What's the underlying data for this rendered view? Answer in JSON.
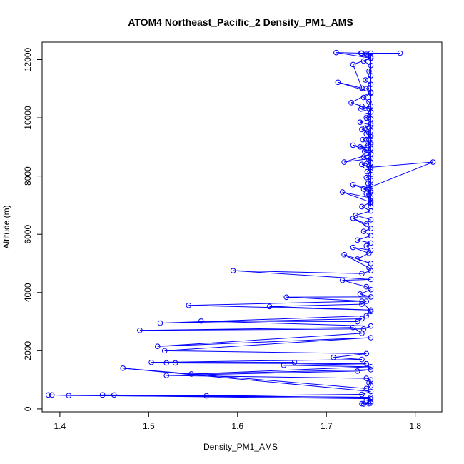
{
  "chart_data": {
    "type": "line",
    "title": "ATOM4 Northeast_Pacific_2 Density_PM1_AMS",
    "xlabel": "Density_PM1_AMS",
    "ylabel": "Altitude (m)",
    "xlim": [
      1.38,
      1.83
    ],
    "ylim": [
      -100,
      12600
    ],
    "xticks": [
      "1.4",
      "1.5",
      "1.6",
      "1.7",
      "1.8"
    ],
    "yticks": [
      "0",
      "2000",
      "4000",
      "6000",
      "8000",
      "10000",
      "12000"
    ],
    "series_color": "#0000ff",
    "series": [
      {
        "x": [
          1.75,
          1.745,
          1.74,
          1.75,
          1.742,
          1.75,
          1.748,
          1.75,
          1.744,
          1.75,
          1.745,
          1.75,
          1.742,
          1.748,
          1.75,
          1.739,
          1.75,
          1.746,
          1.75,
          1.738,
          1.75,
          1.744,
          1.75,
          1.745,
          1.75,
          1.741,
          1.75,
          1.747,
          1.75,
          1.743,
          1.75,
          1.742,
          1.748,
          1.75,
          1.744,
          1.75,
          1.746,
          1.75,
          1.745,
          1.75,
          1.747,
          1.75,
          1.742,
          1.75,
          1.748,
          1.75,
          1.75,
          1.75,
          1.75,
          1.75,
          1.783,
          1.739,
          1.711,
          1.75,
          1.73,
          1.74,
          1.713,
          1.75,
          1.728,
          1.74,
          1.748,
          1.75,
          1.745,
          1.75,
          1.74,
          1.75,
          1.745,
          1.75,
          1.738,
          1.75,
          1.73,
          1.745,
          1.75,
          1.72,
          1.75,
          1.74,
          1.75,
          1.82,
          1.748,
          1.73,
          1.75,
          1.745,
          1.75,
          1.718,
          1.75,
          1.74,
          1.75,
          1.733,
          1.75,
          1.745,
          1.73,
          1.75,
          1.742,
          1.75,
          1.735,
          1.75,
          1.745,
          1.75,
          1.73,
          1.748,
          1.735,
          1.75,
          1.72,
          1.748,
          1.75,
          1.74,
          1.595,
          1.75,
          1.718,
          1.745,
          1.75,
          1.738,
          1.75,
          1.655,
          1.745,
          1.74,
          1.636,
          1.75,
          1.545,
          1.74,
          1.75,
          1.745,
          1.513,
          1.74,
          1.735,
          1.559,
          1.75,
          1.742,
          1.49,
          1.73,
          1.74,
          1.51,
          1.75,
          1.518,
          1.745,
          1.708,
          1.74,
          1.503,
          1.664,
          1.53,
          1.52,
          1.745,
          1.652,
          1.75,
          1.548,
          1.75,
          1.735,
          1.52,
          1.745,
          1.75,
          1.748,
          1.75,
          1.745,
          1.471,
          1.75,
          1.74,
          1.565,
          1.461,
          1.448,
          1.75,
          1.41,
          1.391,
          1.387,
          1.75,
          1.745,
          1.75,
          1.75,
          1.742,
          1.748,
          1.74
        ],
        "y": [
          12100,
          12180,
          12220,
          12050,
          11950,
          11800,
          11600,
          11450,
          11300,
          11150,
          11000,
          10850,
          10700,
          10550,
          10400,
          10300,
          10200,
          10080,
          9960,
          9850,
          9750,
          9650,
          9550,
          9450,
          9350,
          9250,
          9150,
          9050,
          8950,
          8850,
          8750,
          8650,
          8550,
          8450,
          8350,
          8250,
          8150,
          8050,
          7950,
          7850,
          7750,
          7650,
          7550,
          7450,
          7350,
          7250,
          7150,
          7050,
          6950,
          12220,
          12220,
          12220,
          12240,
          12050,
          11830,
          11020,
          11220,
          10880,
          10520,
          10400,
          10320,
          10200,
          10000,
          9800,
          9600,
          9400,
          9250,
          9100,
          9000,
          8950,
          9060,
          8880,
          8760,
          8480,
          8600,
          8400,
          8300,
          8480,
          7600,
          7700,
          7500,
          7400,
          7250,
          7450,
          7100,
          6950,
          6800,
          6650,
          6500,
          6350,
          6550,
          6200,
          6100,
          5950,
          5800,
          5700,
          5600,
          5450,
          5550,
          5350,
          5150,
          5000,
          5300,
          4850,
          4750,
          4650,
          4750,
          4450,
          4420,
          4200,
          4100,
          3950,
          3850,
          3840,
          3700,
          3600,
          3520,
          3400,
          3560,
          3700,
          3350,
          3200,
          2950,
          3100,
          3000,
          3020,
          2850,
          2750,
          2700,
          2800,
          2600,
          2150,
          2450,
          2000,
          1900,
          1770,
          1700,
          1600,
          1600,
          1580,
          1580,
          1550,
          1500,
          1450,
          1200,
          1350,
          1300,
          1150,
          1050,
          1000,
          900,
          800,
          700,
          1400,
          600,
          500,
          450,
          480,
          480,
          400,
          460,
          480,
          480,
          350,
          300,
          250,
          200,
          170,
          180,
          180
        ]
      }
    ]
  }
}
